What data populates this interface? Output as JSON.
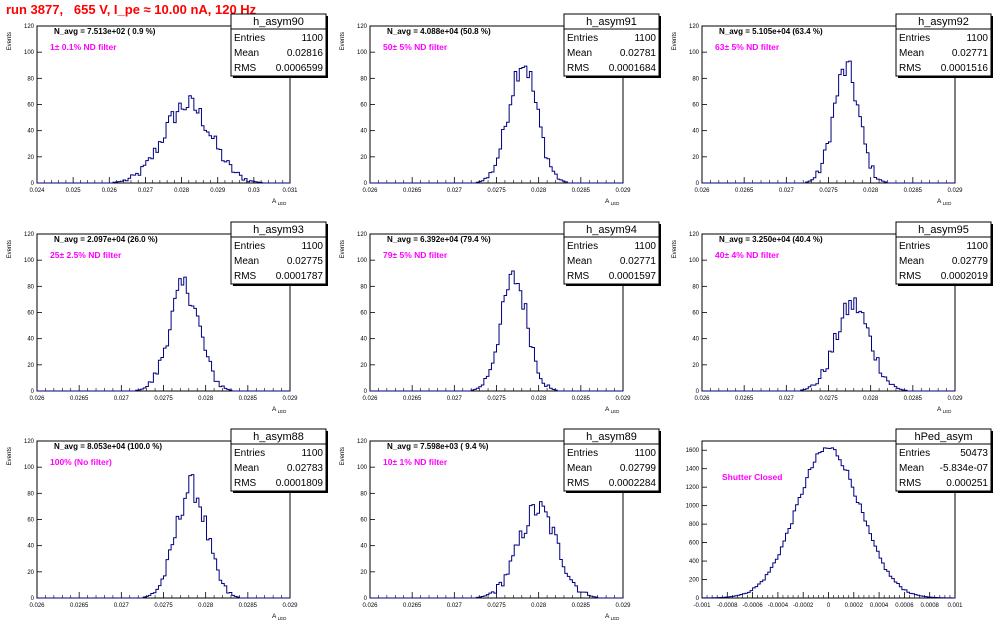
{
  "run_title": "run 3877,   655 V, I_pe ≈ 10.00 nA, 120 Hz",
  "colors": {
    "histogram": "#000080",
    "annotation": "#ff00ff",
    "navg": "#000000",
    "title": "#ff0000"
  },
  "chart_data": [
    {
      "type": "histogram",
      "name": "h_asym90",
      "navg": "N_avg = 7.513e+02 ( 0.9 %)",
      "filter": "1± 0.1% ND filter",
      "stats": {
        "entries": "1100",
        "mean": "0.02816",
        "rms": "0.0006599"
      },
      "xlabel": "A_LED",
      "ylabel": "Events",
      "xlim": [
        0.024,
        0.031
      ],
      "ylim": [
        0,
        120
      ],
      "xticks": [
        "0.024",
        "0.025",
        "0.026",
        "0.027",
        "0.028",
        "0.029",
        "0.03",
        "0.031"
      ],
      "yticks": [
        "0",
        "20",
        "40",
        "60",
        "80",
        "100",
        "120"
      ],
      "mean": 0.02816,
      "rms": 0.0006599,
      "peak": 60,
      "bins": 100
    },
    {
      "type": "histogram",
      "name": "h_asym91",
      "navg": "N_avg = 4.088e+04 (50.8 %)",
      "filter": "50± 5% ND filter",
      "stats": {
        "entries": "1100",
        "mean": "0.02781",
        "rms": "0.0001684"
      },
      "xlabel": "A_LED",
      "ylabel": "Events",
      "xlim": [
        0.026,
        0.029
      ],
      "ylim": [
        0,
        120
      ],
      "xticks": [
        "0.026",
        "0.0265",
        "0.027",
        "0.0275",
        "0.028",
        "0.0285",
        "0.029"
      ],
      "yticks": [
        "0",
        "20",
        "40",
        "60",
        "80",
        "100",
        "120"
      ],
      "mean": 0.02781,
      "rms": 0.0001684,
      "peak": 93,
      "bins": 100
    },
    {
      "type": "histogram",
      "name": "h_asym92",
      "navg": "N_avg = 5.105e+04 (63.4 %)",
      "filter": "63± 5% ND filter",
      "stats": {
        "entries": "1100",
        "mean": "0.02771",
        "rms": "0.0001516"
      },
      "xlabel": "A_LED",
      "ylabel": "Events",
      "xlim": [
        0.026,
        0.029
      ],
      "ylim": [
        0,
        120
      ],
      "xticks": [
        "0.026",
        "0.0265",
        "0.027",
        "0.0275",
        "0.028",
        "0.0285",
        "0.029"
      ],
      "yticks": [
        "0",
        "20",
        "40",
        "60",
        "80",
        "100",
        "120"
      ],
      "mean": 0.02771,
      "rms": 0.0001516,
      "peak": 87,
      "bins": 100
    },
    {
      "type": "histogram",
      "name": "h_asym93",
      "navg": "N_avg = 2.097e+04 (26.0 %)",
      "filter": "25± 2.5% ND filter",
      "stats": {
        "entries": "1100",
        "mean": "0.02775",
        "rms": "0.0001787"
      },
      "xlabel": "A_LED",
      "ylabel": "Events",
      "xlim": [
        0.026,
        0.029
      ],
      "ylim": [
        0,
        120
      ],
      "xticks": [
        "0.026",
        "0.0265",
        "0.027",
        "0.0275",
        "0.028",
        "0.0285",
        "0.029"
      ],
      "yticks": [
        "0",
        "20",
        "40",
        "60",
        "80",
        "100",
        "120"
      ],
      "mean": 0.02775,
      "rms": 0.0001787,
      "peak": 80,
      "bins": 100
    },
    {
      "type": "histogram",
      "name": "h_asym94",
      "navg": "N_avg = 6.392e+04 (79.4 %)",
      "filter": "79± 5% ND filter",
      "stats": {
        "entries": "1100",
        "mean": "0.02771",
        "rms": "0.0001597"
      },
      "xlabel": "A_LED",
      "ylabel": "Events",
      "xlim": [
        0.026,
        0.029
      ],
      "ylim": [
        0,
        120
      ],
      "xticks": [
        "0.026",
        "0.0265",
        "0.027",
        "0.0275",
        "0.028",
        "0.0285",
        "0.029"
      ],
      "yticks": [
        "0",
        "20",
        "40",
        "60",
        "80",
        "100",
        "120"
      ],
      "mean": 0.02771,
      "rms": 0.0001597,
      "peak": 86,
      "bins": 100
    },
    {
      "type": "histogram",
      "name": "h_asym95",
      "navg": "N_avg = 3.250e+04 (40.4 %)",
      "filter": "40± 4% ND filter",
      "stats": {
        "entries": "1100",
        "mean": "0.02779",
        "rms": "0.0002019"
      },
      "xlabel": "A_LED",
      "ylabel": "Events",
      "xlim": [
        0.026,
        0.029
      ],
      "ylim": [
        0,
        120
      ],
      "xticks": [
        "0.026",
        "0.0265",
        "0.027",
        "0.0275",
        "0.028",
        "0.0285",
        "0.029"
      ],
      "yticks": [
        "0",
        "20",
        "40",
        "60",
        "80",
        "100",
        "120"
      ],
      "mean": 0.02779,
      "rms": 0.0002019,
      "peak": 66,
      "bins": 100
    },
    {
      "type": "histogram",
      "name": "h_asym88",
      "navg": "N_avg = 8.053e+04 (100.0 %)",
      "filter": "100% (No filter)",
      "stats": {
        "entries": "1100",
        "mean": "0.02783",
        "rms": "0.0001809"
      },
      "xlabel": "A_LED",
      "ylabel": "Events",
      "xlim": [
        0.026,
        0.029
      ],
      "ylim": [
        0,
        120
      ],
      "xticks": [
        "0.026",
        "0.0265",
        "0.027",
        "0.0275",
        "0.028",
        "0.0285",
        "0.029"
      ],
      "yticks": [
        "0",
        "20",
        "40",
        "60",
        "80",
        "100",
        "120"
      ],
      "mean": 0.02783,
      "rms": 0.0001809,
      "peak": 85,
      "bins": 100
    },
    {
      "type": "histogram",
      "name": "h_asym89",
      "navg": "N_avg = 7.598e+03 ( 9.4 %)",
      "filter": "10± 1% ND filter",
      "stats": {
        "entries": "1100",
        "mean": "0.02799",
        "rms": "0.0002284"
      },
      "xlabel": "A_LED",
      "ylabel": "Events",
      "xlim": [
        0.026,
        0.029
      ],
      "ylim": [
        0,
        120
      ],
      "xticks": [
        "0.026",
        "0.0265",
        "0.027",
        "0.0275",
        "0.028",
        "0.0285",
        "0.029"
      ],
      "yticks": [
        "0",
        "20",
        "40",
        "60",
        "80",
        "100",
        "120"
      ],
      "mean": 0.02799,
      "rms": 0.0002284,
      "peak": 68,
      "bins": 100
    },
    {
      "type": "histogram",
      "name": "hPed_asym",
      "navg": "",
      "filter": "Shutter Closed",
      "stats": {
        "entries": "50473",
        "mean": "-5.834e-07",
        "rms": "0.000251"
      },
      "xlabel": "",
      "ylabel": "",
      "xlim": [
        -0.001,
        0.001
      ],
      "ylim": [
        0,
        1700
      ],
      "xticks": [
        "-0.001",
        "-0.0008",
        "-0.0006",
        "-0.0004",
        "-0.0002",
        "0",
        "0.0002",
        "0.0004",
        "0.0006",
        "0.0008",
        "0.001"
      ],
      "yticks": [
        "0",
        "200",
        "400",
        "600",
        "800",
        "1000",
        "1200",
        "1400",
        "1600"
      ],
      "mean": -5.834e-07,
      "rms": 0.000251,
      "peak": 1620,
      "bins": 100
    }
  ]
}
